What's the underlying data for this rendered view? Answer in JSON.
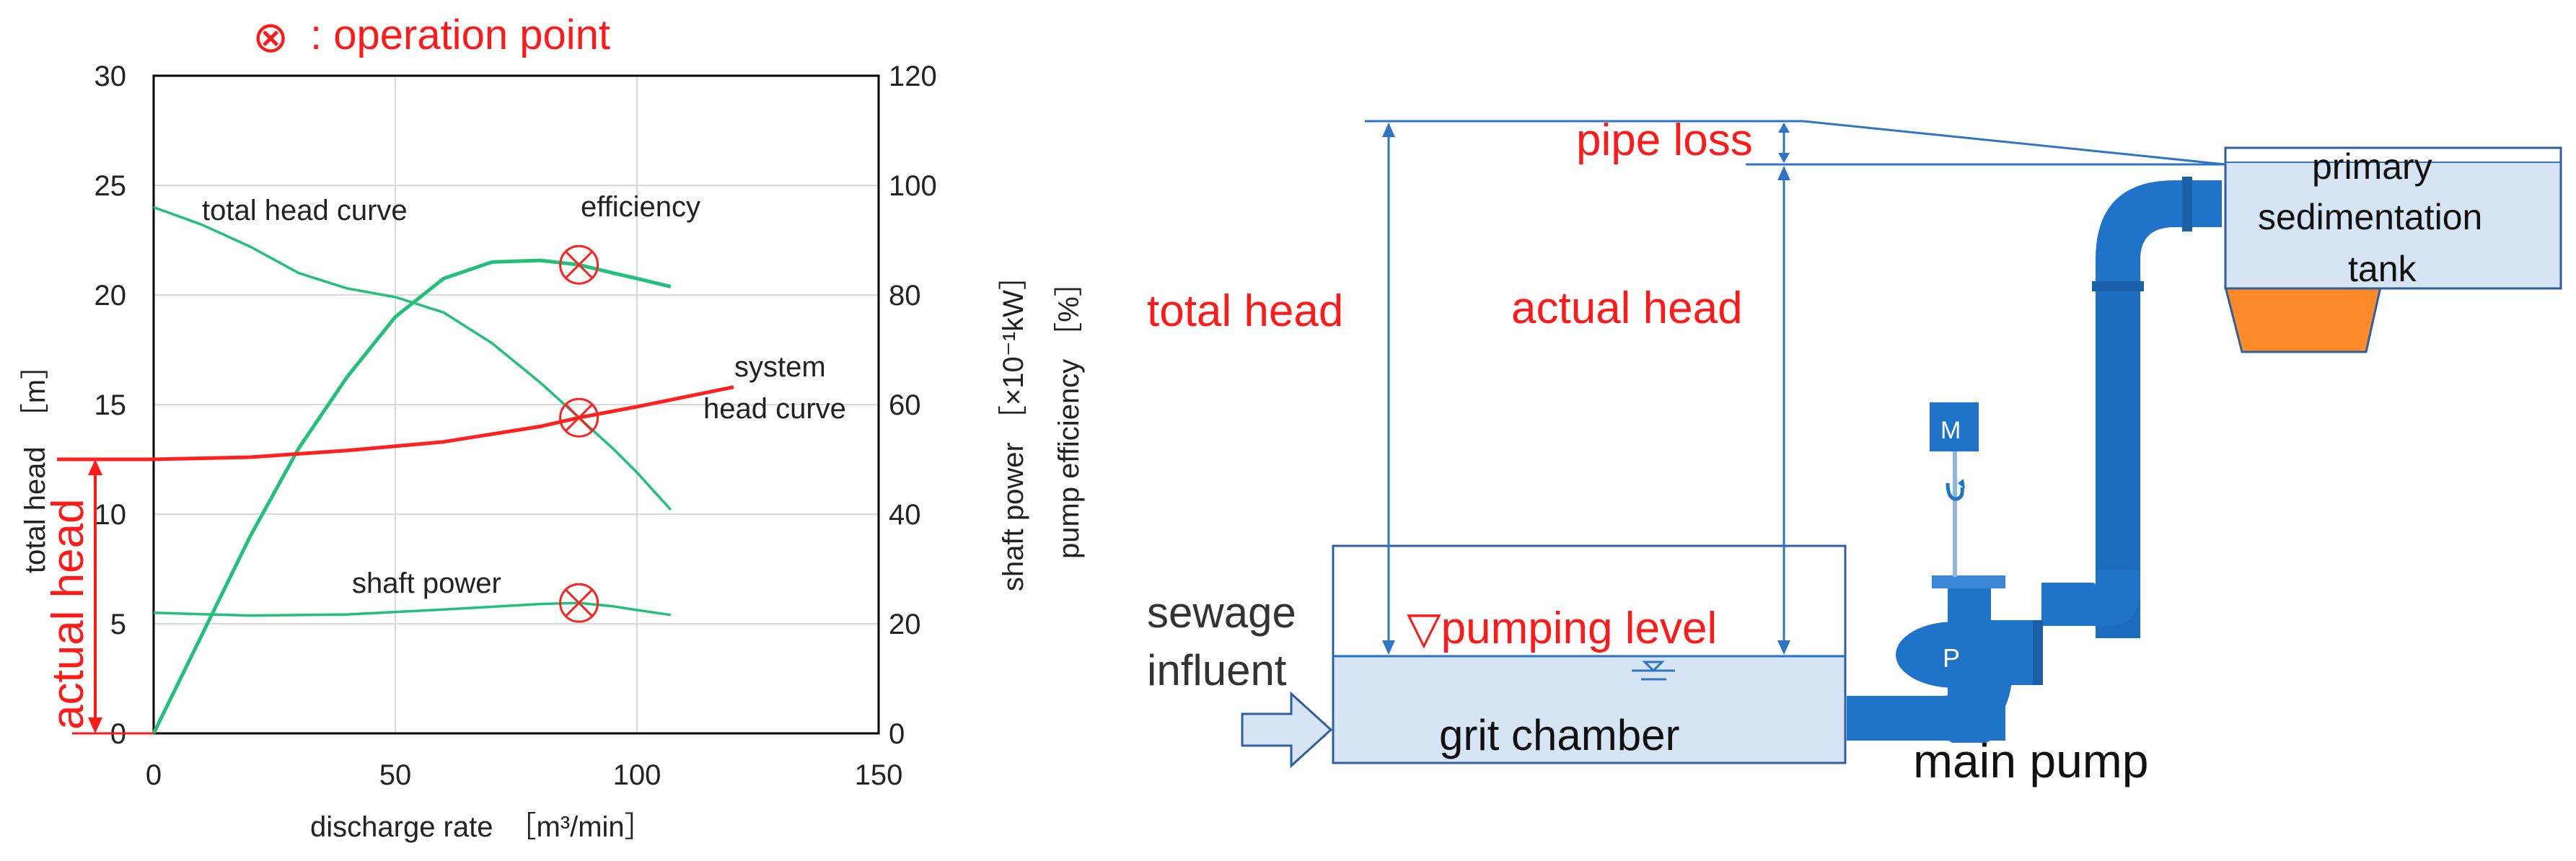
{
  "legend": {
    "symbol": "⊗",
    "text": ": operation point"
  },
  "chart_data": {
    "type": "line",
    "xlabel": "discharge rate　［m³/min］",
    "ylabel_left": "total head　［m］",
    "ylabel_right_1": "shaft power ［×10⁻¹kW］",
    "ylabel_right_2": "pump efficiency ［%］",
    "xlim": [
      0,
      150
    ],
    "ylim_left": [
      0,
      30
    ],
    "ylim_right": [
      0,
      120
    ],
    "x_ticks": [
      "0",
      "50",
      "100",
      "150"
    ],
    "y_left_ticks": [
      "0",
      "5",
      "10",
      "15",
      "20",
      "25",
      "30"
    ],
    "y_right_ticks": [
      "0",
      "20",
      "40",
      "60",
      "80",
      "100",
      "120"
    ],
    "grid": true,
    "series": [
      {
        "name": "total head curve",
        "axis": "left",
        "x": [
          0,
          10,
          20,
          30,
          40,
          50,
          60,
          70,
          80,
          88,
          95,
          100,
          107
        ],
        "y": [
          24,
          23.2,
          22.2,
          21.0,
          20.3,
          19.9,
          19.2,
          17.8,
          16.0,
          14.4,
          13.0,
          11.9,
          10.2
        ]
      },
      {
        "name": "efficiency",
        "axis": "right",
        "x": [
          0,
          10,
          20,
          30,
          40,
          50,
          60,
          70,
          80,
          88,
          95,
          100,
          107
        ],
        "y": [
          0,
          18,
          36,
          52,
          65,
          76,
          83,
          86,
          86.3,
          85.5,
          84,
          83,
          81.5
        ]
      },
      {
        "name": "system head curve",
        "axis": "left",
        "x": [
          -20,
          0,
          20,
          40,
          60,
          80,
          88,
          100,
          120
        ],
        "y": [
          12.5,
          12.5,
          12.6,
          12.9,
          13.3,
          14.0,
          14.4,
          14.9,
          15.8
        ]
      },
      {
        "name": "shaft power",
        "axis": "right",
        "x": [
          0,
          20,
          40,
          60,
          80,
          88,
          95,
          100,
          107
        ],
        "y": [
          22,
          21.5,
          21.7,
          22.6,
          23.6,
          23.8,
          23.2,
          22.5,
          21.6
        ]
      }
    ],
    "operation_points": [
      {
        "x": 88,
        "axis": "right",
        "y": 85.5
      },
      {
        "x": 88,
        "axis": "left",
        "y": 14.4
      },
      {
        "x": 88,
        "axis": "right",
        "y": 23.8
      }
    ],
    "actual_head_value": 12.5,
    "annotations": {
      "total_head_curve": "total head curve",
      "efficiency": "efficiency",
      "system_head_1": "system",
      "system_head_2": "head curve",
      "shaft_power": "shaft power",
      "actual_head": "actual head"
    },
    "colors": {
      "pump_curves": "#22c17a",
      "system_curve": "#ff2020",
      "operation_point": "#ff2020",
      "grid": "#d9d9d9",
      "axis": "#000000"
    }
  },
  "diagram": {
    "labels": {
      "pipe_loss": "pipe loss",
      "total_head": "total head",
      "actual_head": "actual head",
      "pumping_level": "▽pumping level",
      "sewage": "sewage",
      "influent": "influent",
      "grit_chamber": "grit chamber",
      "main_pump": "main pump",
      "primary_1": "primary",
      "primary_2": "sedimentation",
      "primary_3": "tank",
      "motor": "M",
      "pump": "P"
    },
    "colors": {
      "pipe": "#1f73c9",
      "tank_fill": "#d6e4f3",
      "tank_stroke": "#2f5fa0",
      "dimension_line": "#2e75c6",
      "sludge": "#ff8a2a",
      "red_text": "#ff1a1a"
    }
  }
}
